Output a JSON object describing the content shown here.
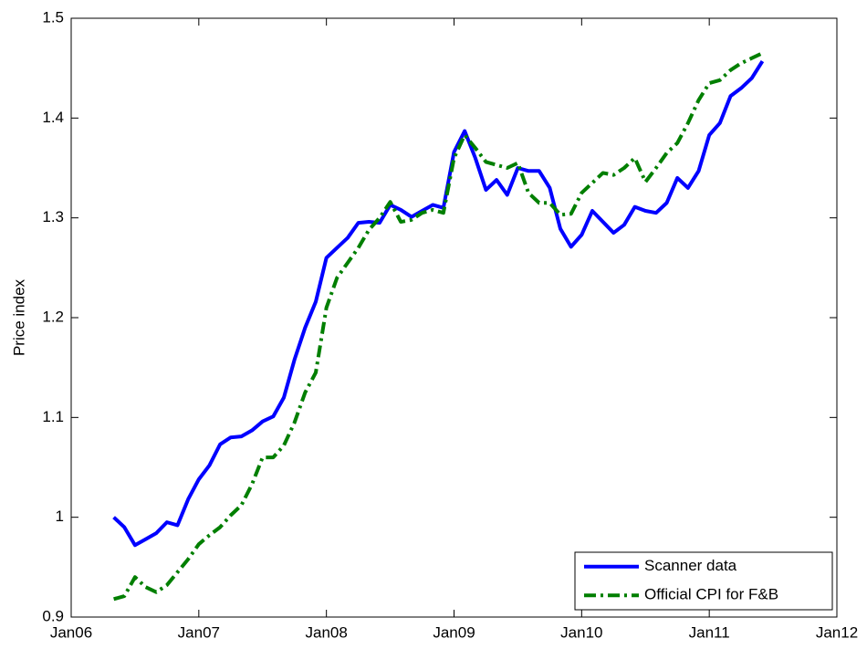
{
  "chart_data": {
    "type": "line",
    "ylabel": "Price index",
    "x": [
      "2006-05",
      "2006-06",
      "2006-07",
      "2006-08",
      "2006-09",
      "2006-10",
      "2006-11",
      "2006-12",
      "2007-01",
      "2007-02",
      "2007-03",
      "2007-04",
      "2007-05",
      "2007-06",
      "2007-07",
      "2007-08",
      "2007-09",
      "2007-10",
      "2007-11",
      "2007-12",
      "2008-01",
      "2008-02",
      "2008-03",
      "2008-04",
      "2008-05",
      "2008-06",
      "2008-07",
      "2008-08",
      "2008-09",
      "2008-10",
      "2008-11",
      "2008-12",
      "2009-01",
      "2009-02",
      "2009-03",
      "2009-04",
      "2009-05",
      "2009-06",
      "2009-07",
      "2009-08",
      "2009-09",
      "2009-10",
      "2009-11",
      "2009-12",
      "2010-01",
      "2010-02",
      "2010-03",
      "2010-04",
      "2010-05",
      "2010-06",
      "2010-07",
      "2010-08",
      "2010-09",
      "2010-10",
      "2010-11",
      "2010-12",
      "2011-01",
      "2011-02",
      "2011-03",
      "2011-04",
      "2011-05",
      "2011-06"
    ],
    "series": [
      {
        "name": "Scanner data",
        "color": "#0000ff",
        "dash": "solid",
        "values": [
          1.0,
          0.99,
          0.972,
          0.978,
          0.984,
          0.995,
          0.992,
          1.018,
          1.038,
          1.052,
          1.073,
          1.08,
          1.081,
          1.087,
          1.096,
          1.101,
          1.12,
          1.158,
          1.19,
          1.216,
          1.26,
          1.27,
          1.28,
          1.295,
          1.296,
          1.295,
          1.313,
          1.308,
          1.301,
          1.307,
          1.313,
          1.31,
          1.366,
          1.387,
          1.36,
          1.328,
          1.338,
          1.323,
          1.35,
          1.347,
          1.347,
          1.33,
          1.289,
          1.271,
          1.283,
          1.307,
          1.296,
          1.285,
          1.293,
          1.311,
          1.307,
          1.305,
          1.315,
          1.34,
          1.33,
          1.347,
          1.383,
          1.395,
          1.422,
          1.43,
          1.44,
          1.457
        ]
      },
      {
        "name": "Official CPI for F&B",
        "color": "#007f00",
        "dash": "dashdot",
        "values": [
          0.918,
          0.921,
          0.94,
          0.93,
          0.925,
          0.932,
          0.945,
          0.958,
          0.973,
          0.982,
          0.99,
          1.002,
          1.012,
          1.033,
          1.06,
          1.06,
          1.072,
          1.095,
          1.125,
          1.145,
          1.21,
          1.24,
          1.255,
          1.27,
          1.288,
          1.3,
          1.316,
          1.296,
          1.298,
          1.305,
          1.308,
          1.305,
          1.36,
          1.383,
          1.37,
          1.356,
          1.353,
          1.35,
          1.355,
          1.325,
          1.315,
          1.315,
          1.303,
          1.304,
          1.325,
          1.335,
          1.345,
          1.343,
          1.35,
          1.36,
          1.336,
          1.35,
          1.365,
          1.375,
          1.395,
          1.418,
          1.435,
          1.438,
          1.448,
          1.455,
          1.46,
          1.465
        ]
      }
    ],
    "xlim": [
      "2006-01",
      "2012-01"
    ],
    "xticks": [
      {
        "value": "2006-01",
        "label": "Jan06"
      },
      {
        "value": "2007-01",
        "label": "Jan07"
      },
      {
        "value": "2008-01",
        "label": "Jan08"
      },
      {
        "value": "2009-01",
        "label": "Jan09"
      },
      {
        "value": "2010-01",
        "label": "Jan10"
      },
      {
        "value": "2011-01",
        "label": "Jan11"
      },
      {
        "value": "2012-01",
        "label": "Jan12"
      }
    ],
    "ylim": [
      0.9,
      1.5
    ],
    "yticks": [
      0.9,
      1,
      1.1,
      1.2,
      1.3,
      1.4,
      1.5
    ],
    "grid": false,
    "legend": "lower-right"
  }
}
